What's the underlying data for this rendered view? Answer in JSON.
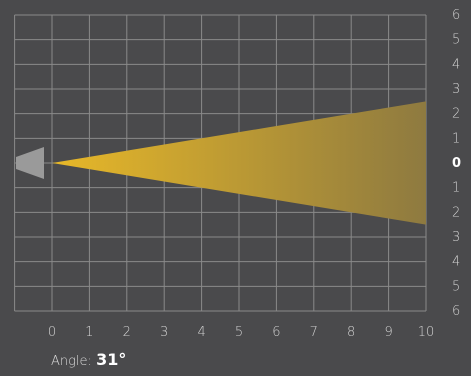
{
  "chart_data": {
    "type": "diagram",
    "x_ticks": [
      "0",
      "1",
      "2",
      "3",
      "4",
      "5",
      "6",
      "7",
      "8",
      "9",
      "10"
    ],
    "y_ticks": [
      "6",
      "5",
      "4",
      "3",
      "2",
      "1",
      "0",
      "1",
      "2",
      "3",
      "4",
      "5",
      "6"
    ],
    "xlim": [
      0,
      10
    ],
    "ylim": [
      -6,
      6
    ],
    "beam": {
      "origin": [
        0,
        0
      ],
      "end_x": 10,
      "end_half_width": 2.5,
      "color_start": "#e8b828",
      "color_end": "#8e7a40"
    },
    "emphasized_y_tick": "0"
  },
  "readout": {
    "label": "Angle:",
    "value": "31°"
  },
  "colors": {
    "background": "#4a4a4c",
    "grid": "#8a8a8a",
    "light_source": "#9a9a9a"
  }
}
